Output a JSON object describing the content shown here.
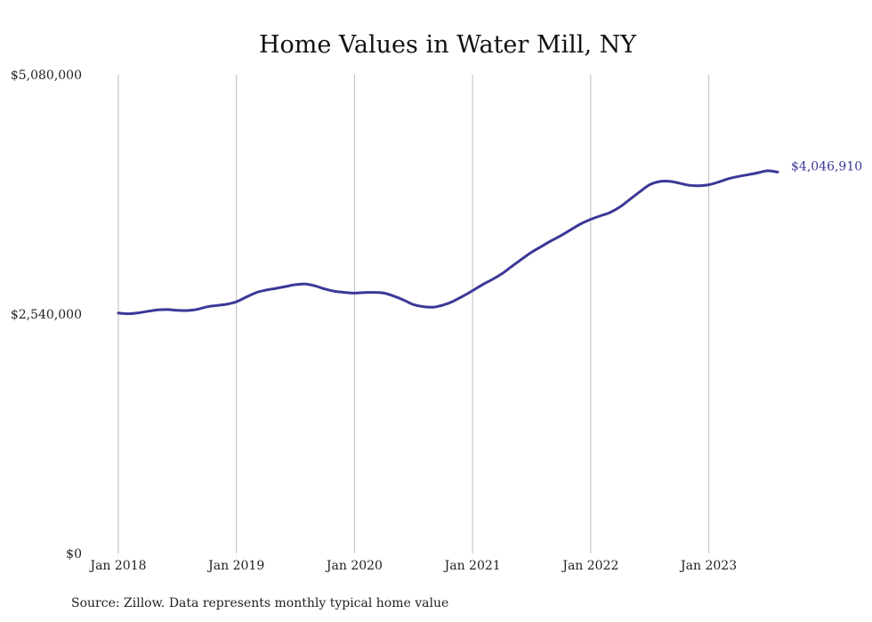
{
  "chart_data": {
    "type": "line",
    "title": "Home Values in Water Mill, NY",
    "source": "Source: Zillow. Data represents monthly typical home value",
    "ylim": [
      0,
      5080000
    ],
    "y_ticks": [
      {
        "value": 0,
        "label": "$0"
      },
      {
        "value": 2540000,
        "label": "$2,540,000"
      },
      {
        "value": 5080000,
        "label": "$5,080,000"
      }
    ],
    "x_ticks": [
      {
        "value": "2018-01",
        "label": "Jan 2018"
      },
      {
        "value": "2019-01",
        "label": "Jan 2019"
      },
      {
        "value": "2020-01",
        "label": "Jan 2020"
      },
      {
        "value": "2021-01",
        "label": "Jan 2021"
      },
      {
        "value": "2022-01",
        "label": "Jan 2022"
      },
      {
        "value": "2023-01",
        "label": "Jan 2023"
      }
    ],
    "xlim": [
      "2018-01",
      "2023-08"
    ],
    "grid": "vertical",
    "line_color": "#3b3897",
    "end_label": "$4,046,910",
    "x": [
      "2018-01",
      "2018-02",
      "2018-03",
      "2018-04",
      "2018-05",
      "2018-06",
      "2018-07",
      "2018-08",
      "2018-09",
      "2018-10",
      "2018-11",
      "2018-12",
      "2019-01",
      "2019-02",
      "2019-03",
      "2019-04",
      "2019-05",
      "2019-06",
      "2019-07",
      "2019-08",
      "2019-09",
      "2019-10",
      "2019-11",
      "2019-12",
      "2020-01",
      "2020-02",
      "2020-03",
      "2020-04",
      "2020-05",
      "2020-06",
      "2020-07",
      "2020-08",
      "2020-09",
      "2020-10",
      "2020-11",
      "2020-12",
      "2021-01",
      "2021-02",
      "2021-03",
      "2021-04",
      "2021-05",
      "2021-06",
      "2021-07",
      "2021-08",
      "2021-09",
      "2021-10",
      "2021-11",
      "2021-12",
      "2022-01",
      "2022-02",
      "2022-03",
      "2022-04",
      "2022-05",
      "2022-06",
      "2022-07",
      "2022-08",
      "2022-09",
      "2022-10",
      "2022-11",
      "2022-12",
      "2023-01",
      "2023-02",
      "2023-03",
      "2023-04",
      "2023-05",
      "2023-06",
      "2023-07",
      "2023-08"
    ],
    "values": [
      2551000,
      2544000,
      2553000,
      2570000,
      2584000,
      2588000,
      2580000,
      2578000,
      2590000,
      2617000,
      2632000,
      2645000,
      2671000,
      2721000,
      2768000,
      2795000,
      2813000,
      2833000,
      2853000,
      2860000,
      2839000,
      2806000,
      2782000,
      2770000,
      2763000,
      2769000,
      2770000,
      2763000,
      2731000,
      2689000,
      2641000,
      2619000,
      2614000,
      2636000,
      2675000,
      2730000,
      2789000,
      2853000,
      2908000,
      2970000,
      3048000,
      3124000,
      3197000,
      3259000,
      3319000,
      3375000,
      3437000,
      3498000,
      3546000,
      3583000,
      3620000,
      3679000,
      3759000,
      3839000,
      3913000,
      3947000,
      3950000,
      3930000,
      3907000,
      3903000,
      3913000,
      3942000,
      3977000,
      4001000,
      4020000,
      4040000,
      4061000,
      4046910
    ]
  }
}
